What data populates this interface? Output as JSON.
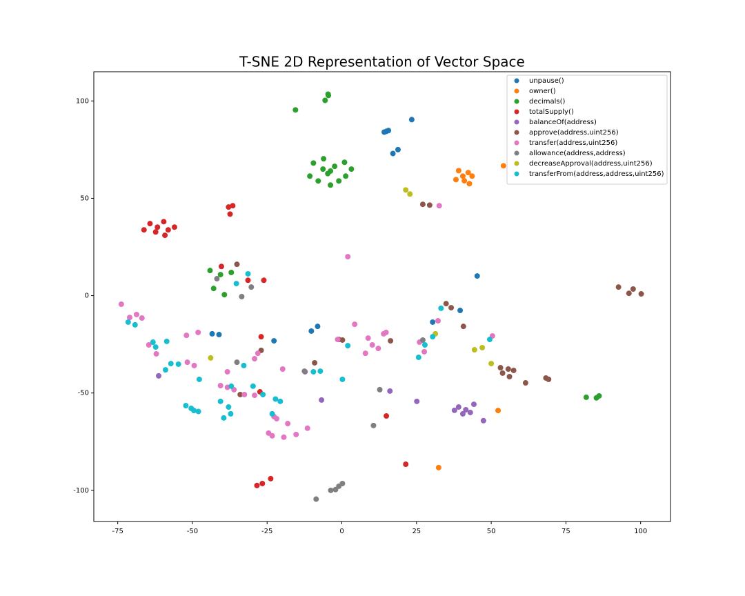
{
  "chart_data": {
    "type": "scatter",
    "title": "T-SNE 2D Representation of Vector Space",
    "xlim": [
      -83,
      110
    ],
    "ylim": [
      -116,
      115
    ],
    "xticks": [
      -75,
      -50,
      -25,
      0,
      25,
      50,
      75,
      100
    ],
    "yticks": [
      -100,
      -50,
      0,
      50,
      100
    ],
    "legend": "upper right",
    "series": [
      {
        "name": "unpause()",
        "color": "#1f77b4",
        "x": [
          14.9,
          14.2,
          15.6,
          23.4,
          18.8,
          17.1,
          45.3,
          39.6,
          30.4,
          -8.1,
          -10.2,
          -43.4,
          -41.1,
          -22.7
        ],
        "y": [
          84.4,
          84.0,
          84.8,
          90.4,
          75.0,
          73.0,
          10.1,
          -7.6,
          -13.6,
          -15.8,
          -18.2,
          -19.6,
          -20.0,
          -23.2
        ]
      },
      {
        "name": "owner()",
        "color": "#ff7f0e",
        "x": [
          40.5,
          39.1,
          42.3,
          38.2,
          43.6,
          42.7,
          41.0,
          54.1,
          52.3,
          32.4
        ],
        "y": [
          61.4,
          64.2,
          63.2,
          59.6,
          61.4,
          57.5,
          59.0,
          66.7,
          -59.0,
          -88.3
        ]
      },
      {
        "name": "decimals()",
        "color": "#2ca02c",
        "x": [
          -15.5,
          -4.5,
          -4.6,
          -5.6,
          -6.1,
          -9.5,
          0.9,
          3.2,
          -10.7,
          -7.9,
          -3.8,
          -1.0,
          1.3,
          -6.3,
          -2.4,
          -4.7,
          -3.8,
          -44.1,
          -40.6,
          -42.9,
          -39.3,
          -37.0,
          81.8,
          86.1,
          85.2
        ],
        "y": [
          95.4,
          102.8,
          103.5,
          100.3,
          70.3,
          68.1,
          68.5,
          65.0,
          61.4,
          58.9,
          56.8,
          58.9,
          61.4,
          65.0,
          66.4,
          62.7,
          64.0,
          12.9,
          10.8,
          3.7,
          0.5,
          11.9,
          -52.2,
          -51.5,
          -52.5
        ]
      },
      {
        "name": "totalSupply()",
        "color": "#d62728",
        "x": [
          -64.2,
          -59.6,
          -61.7,
          -58.1,
          -56.0,
          -59.2,
          -62.3,
          -66.2,
          -37.9,
          -36.5,
          -37.4,
          -40.3,
          -31.4,
          -26.1,
          -27.0,
          14.9,
          21.4,
          -28.4,
          -26.6,
          -23.8,
          -27.4
        ],
        "y": [
          37.0,
          38.0,
          35.2,
          33.8,
          35.2,
          31.0,
          32.7,
          33.8,
          45.5,
          46.2,
          41.9,
          15.0,
          7.9,
          7.9,
          -21.1,
          -61.8,
          -86.6,
          -97.5,
          -96.5,
          -94.0,
          -49.4
        ]
      },
      {
        "name": "balanceOf(address)",
        "color": "#9467bd",
        "x": [
          41.5,
          39.1,
          44.2,
          40.5,
          43.0,
          37.7,
          47.4,
          25.1,
          16.1,
          -6.8,
          -12.3,
          -61.3
        ],
        "y": [
          -58.6,
          -57.2,
          -55.8,
          -60.7,
          -60.0,
          -58.9,
          -64.2,
          -54.3,
          -49.0,
          -53.6,
          -39.1,
          -41.2
        ]
      },
      {
        "name": "approve(address,uint256)",
        "color": "#8c564b",
        "x": [
          92.6,
          96.1,
          97.5,
          100.2,
          27.1,
          29.4,
          -35.1,
          34.9,
          36.6,
          40.7,
          0.2,
          -1.0,
          16.3,
          -9.1,
          -27.0,
          57.5,
          55.7,
          53.1,
          56.1,
          53.8,
          61.5,
          68.3,
          69.2,
          -34.0
        ],
        "y": [
          4.4,
          1.2,
          3.4,
          0.9,
          46.9,
          46.5,
          16.1,
          -4.1,
          -6.2,
          -15.8,
          -22.8,
          -22.5,
          -23.2,
          -34.5,
          -28.1,
          -38.4,
          -37.7,
          -37.0,
          -41.6,
          -39.8,
          -44.8,
          -42.3,
          -43.0,
          -50.8
        ]
      },
      {
        "name": "transfer(address,uint256)",
        "color": "#e377c2",
        "x": [
          -73.8,
          -68.7,
          -66.9,
          -71.0,
          -64.6,
          -62.1,
          -52.0,
          -48.1,
          -51.7,
          -49.4,
          -38.3,
          -29.2,
          -28.1,
          -19.8,
          -40.6,
          -38.3,
          -36.1,
          -32.6,
          -29.2,
          -24.5,
          -23.3,
          -15.3,
          -19.4,
          -11.5,
          -18.1,
          -21.8,
          2.0,
          32.6,
          14.8,
          14.0,
          4.3,
          8.8,
          10.2,
          12.2,
          7.9,
          -1.4,
          26.0,
          27.6,
          32.2,
          50.4,
          -22.7
        ],
        "y": [
          -4.4,
          -9.7,
          -11.5,
          -11.2,
          -25.3,
          -29.9,
          -20.4,
          -18.9,
          -34.2,
          -35.9,
          -39.1,
          -32.4,
          -29.6,
          -37.7,
          -46.2,
          -47.1,
          -48.3,
          -50.8,
          -51.2,
          -70.6,
          -72.0,
          -71.3,
          -72.7,
          -68.1,
          -65.7,
          -63.2,
          20.0,
          46.2,
          -18.9,
          -19.6,
          -14.7,
          -21.8,
          -25.3,
          -27.1,
          -29.6,
          -22.5,
          -23.9,
          -28.8,
          -12.9,
          -20.7,
          -62.1
        ]
      },
      {
        "name": "allowance(address,address)",
        "color": "#7f7f7f",
        "x": [
          -41.8,
          -30.3,
          -33.5,
          -35.1,
          -12.5,
          12.7,
          10.6,
          -2.1,
          -3.7,
          -1.0,
          0.2,
          -8.6,
          27.1
        ],
        "y": [
          8.7,
          4.4,
          -0.5,
          -34.2,
          -38.8,
          -48.3,
          -66.7,
          -99.6,
          -100.0,
          -97.9,
          -96.5,
          -104.5,
          -22.8
        ]
      },
      {
        "name": "decreaseApproval(address,uint256)",
        "color": "#bcbd22",
        "x": [
          21.4,
          22.8,
          -43.9,
          44.4,
          47.0,
          50.0,
          31.3
        ],
        "y": [
          54.3,
          52.2,
          -32.0,
          -27.8,
          -26.7,
          -34.9,
          -19.6
        ]
      },
      {
        "name": "transferFrom(address,address,uint256)",
        "color": "#17becf",
        "x": [
          -35.3,
          -31.4,
          -71.5,
          -69.2,
          -63.2,
          -62.3,
          -59.0,
          -57.2,
          -54.7,
          -58.6,
          -50.4,
          -52.2,
          -48.0,
          -49.5,
          -47.7,
          -37.0,
          -40.6,
          -37.9,
          -37.2,
          -32.8,
          -26.4,
          -22.2,
          -20.6,
          -29.7,
          -9.5,
          -7.2,
          0.2,
          2.0,
          25.7,
          27.8,
          30.4,
          33.2,
          49.5,
          -23.3,
          -39.5
        ],
        "y": [
          6.2,
          11.2,
          -13.6,
          -15.0,
          -23.9,
          -26.4,
          -38.1,
          -34.9,
          -35.2,
          -23.5,
          -57.9,
          -56.5,
          -59.5,
          -59.0,
          -43.0,
          -46.5,
          -54.3,
          -57.2,
          -60.7,
          -35.9,
          -50.8,
          -53.1,
          -54.3,
          -46.5,
          -39.1,
          -38.8,
          -43.0,
          -25.7,
          -31.7,
          -25.3,
          -21.1,
          -6.5,
          -22.5,
          -60.7,
          -62.8
        ]
      }
    ]
  }
}
